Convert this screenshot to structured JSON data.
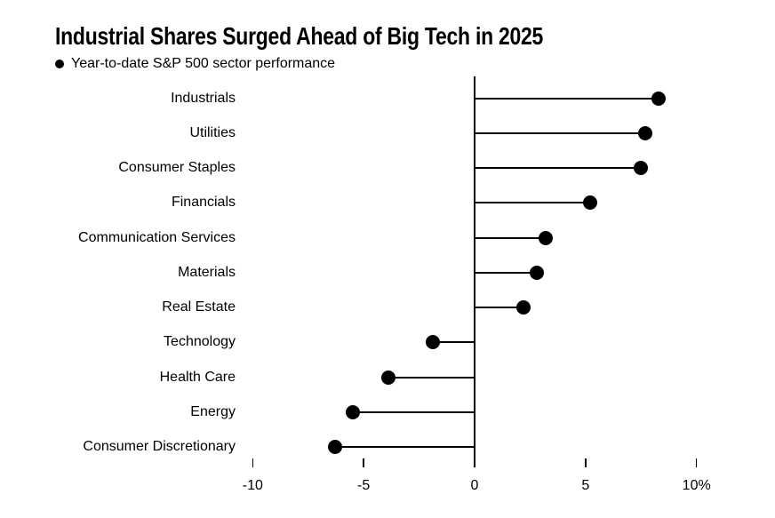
{
  "chart_data": {
    "type": "bar",
    "variant": "lollipop",
    "orientation": "horizontal",
    "title": "Industrial Shares Surged Ahead of Big Tech in 2025",
    "legend": "Year-to-date S&P 500 sector performance",
    "legend_position": "top-left",
    "grid": false,
    "categories": [
      "Industrials",
      "Utilities",
      "Consumer Staples",
      "Financials",
      "Communication Services",
      "Materials",
      "Real Estate",
      "Technology",
      "Health Care",
      "Energy",
      "Consumer Discretionary"
    ],
    "values": [
      8.3,
      7.7,
      7.5,
      5.2,
      3.2,
      2.8,
      2.2,
      -1.9,
      -3.9,
      -5.5,
      -6.3
    ],
    "unit": "%",
    "xlim": [
      -10,
      10
    ],
    "x_ticks": [
      {
        "value": -10,
        "label": "-10"
      },
      {
        "value": -5,
        "label": "-5"
      },
      {
        "value": 0,
        "label": "0"
      },
      {
        "value": 5,
        "label": "5"
      },
      {
        "value": 10,
        "label": "10%"
      }
    ]
  },
  "colors": {
    "foreground": "#000000",
    "background": "#ffffff"
  }
}
